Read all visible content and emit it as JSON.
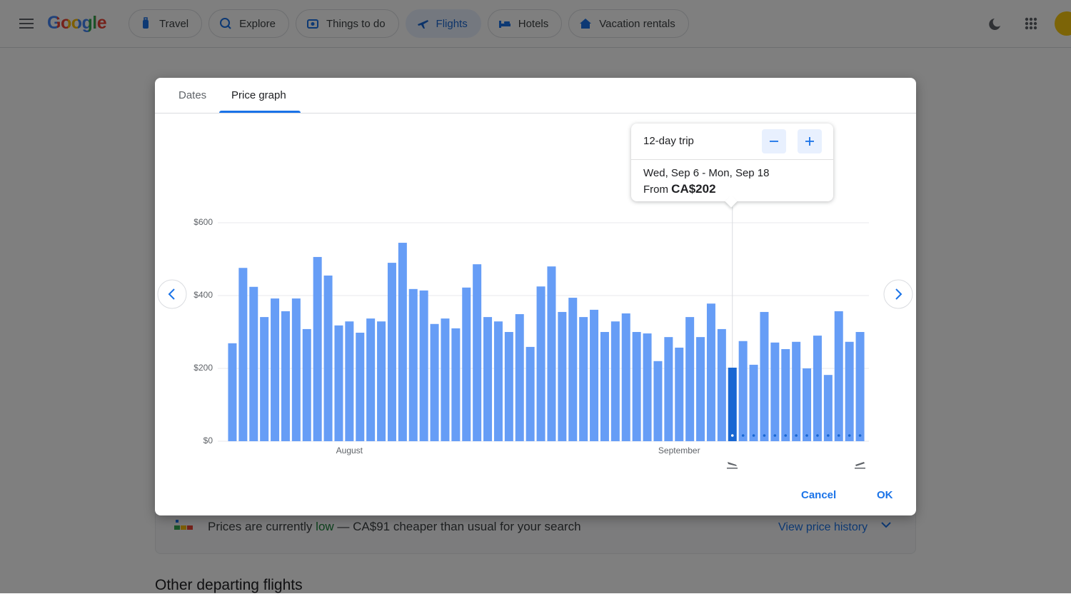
{
  "header": {
    "logo": "Google",
    "tabs": [
      "Travel",
      "Explore",
      "Things to do",
      "Flights",
      "Hotels",
      "Vacation rentals"
    ]
  },
  "background": {
    "insight_prefix": "Prices are currently ",
    "insight_level": "low",
    "insight_suffix": " — CA$91 cheaper than usual for your search",
    "history_link": "View price history",
    "section_title": "Other departing flights"
  },
  "modal": {
    "tabs": [
      "Dates",
      "Price graph"
    ],
    "tooltip": {
      "trip": "12-day trip",
      "dates": "Wed, Sep 6 - Mon, Sep 18",
      "from": "From",
      "price": "CA$202"
    },
    "cancel": "Cancel",
    "ok": "OK"
  },
  "chart_data": {
    "type": "bar",
    "categories": [
      null,
      null,
      null,
      null,
      null,
      null,
      null,
      null,
      null,
      null,
      null,
      "August",
      null,
      null,
      null,
      null,
      null,
      null,
      null,
      null,
      null,
      null,
      null,
      null,
      null,
      null,
      null,
      null,
      null,
      null,
      null,
      null,
      null,
      null,
      null,
      null,
      null,
      null,
      null,
      null,
      null,
      null,
      "September",
      null,
      null,
      null,
      null,
      null,
      null,
      null,
      null,
      null,
      null,
      null,
      null,
      null,
      null,
      null,
      null,
      null
    ],
    "values": [
      269,
      476,
      424,
      341,
      392,
      357,
      392,
      308,
      506,
      455,
      318,
      329,
      298,
      337,
      329,
      490,
      545,
      418,
      414,
      322,
      337,
      310,
      422,
      486,
      341,
      329,
      300,
      349,
      259,
      425,
      480,
      355,
      394,
      341,
      361,
      300,
      329,
      351,
      300,
      296,
      220,
      286,
      257,
      341,
      286,
      378,
      308,
      202,
      275,
      210,
      355,
      271,
      253,
      273,
      200,
      290,
      182,
      357,
      273,
      300
    ],
    "color": "#669df6",
    "highlight_index": 47,
    "highlight_color": "#1967d2",
    "ylim": [
      0,
      600
    ],
    "yticks": [
      {
        "value": 0,
        "label": "$0"
      },
      {
        "value": 200,
        "label": "$200"
      },
      {
        "value": 400,
        "label": "$400"
      },
      {
        "value": 600,
        "label": "$600"
      }
    ],
    "grid": true
  }
}
